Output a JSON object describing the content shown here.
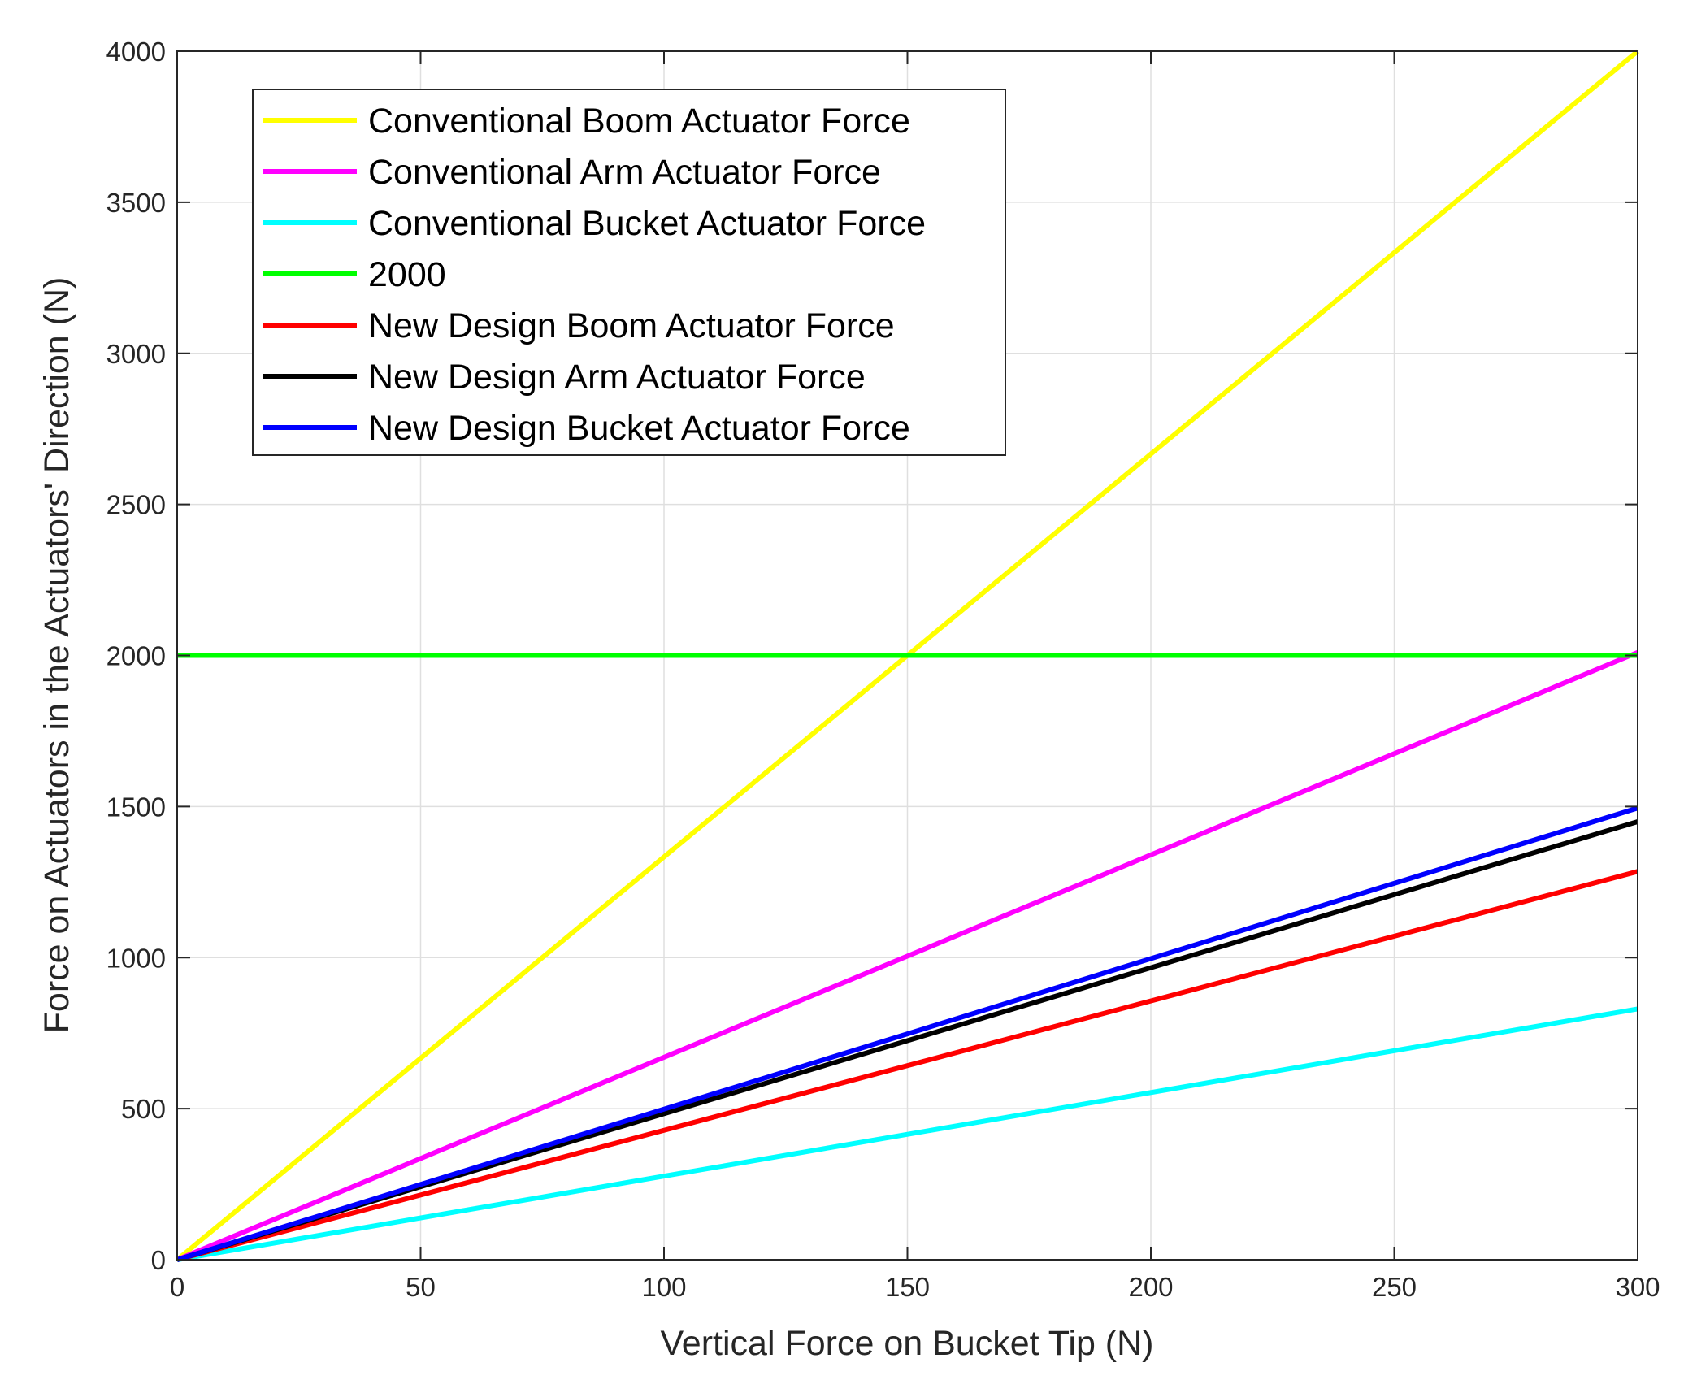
{
  "chart_data": {
    "type": "line",
    "xlabel": "Vertical Force on Bucket Tip (N)",
    "ylabel": "Force on Actuators in the Actuators' Direction (N)",
    "xlim": [
      0,
      300
    ],
    "ylim": [
      0,
      4000
    ],
    "xticks": [
      0,
      50,
      100,
      150,
      200,
      250,
      300
    ],
    "yticks": [
      0,
      500,
      1000,
      1500,
      2000,
      2500,
      3000,
      3500,
      4000
    ],
    "grid": true,
    "legend_position": "top-left",
    "series": [
      {
        "name": "Conventional Boom Actuator Force",
        "color": "#ffff00",
        "x": [
          0,
          300
        ],
        "y": [
          0,
          4000
        ]
      },
      {
        "name": "Conventional Arm Actuator Force",
        "color": "#ff00ff",
        "x": [
          0,
          300
        ],
        "y": [
          0,
          2010
        ]
      },
      {
        "name": "Conventional Bucket Actuator Force",
        "color": "#00ffff",
        "x": [
          0,
          300
        ],
        "y": [
          0,
          830
        ]
      },
      {
        "name": "2000",
        "color": "#00ff00",
        "x": [
          0,
          300
        ],
        "y": [
          2000,
          2000
        ]
      },
      {
        "name": "New Design Boom Actuator Force",
        "color": "#ff0000",
        "x": [
          0,
          300
        ],
        "y": [
          0,
          1285
        ]
      },
      {
        "name": "New Design Arm Actuator Force",
        "color": "#000000",
        "x": [
          0,
          300
        ],
        "y": [
          0,
          1450
        ]
      },
      {
        "name": "New Design Bucket Actuator Force",
        "color": "#0000ff",
        "x": [
          0,
          300
        ],
        "y": [
          0,
          1495
        ]
      }
    ]
  }
}
